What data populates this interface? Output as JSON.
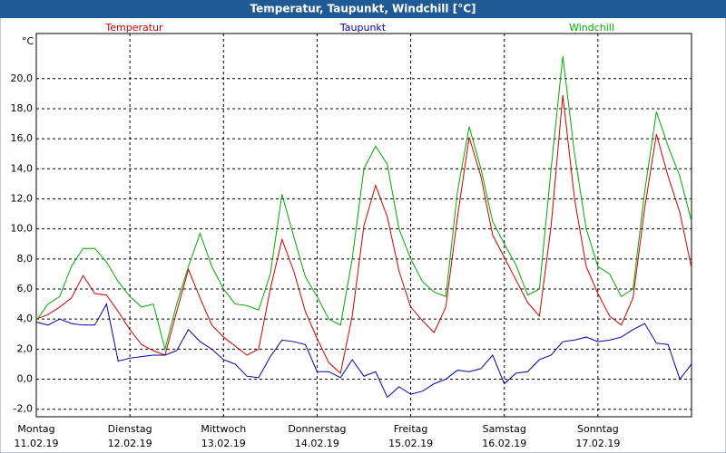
{
  "chart_data": {
    "type": "line",
    "title": "Temperatur, Taupunkt, Windchill [°C]",
    "y_unit": "°C",
    "xlim": [
      0,
      168
    ],
    "ylim": [
      -2.5,
      23
    ],
    "xticks": [
      {
        "value": 0,
        "label": "Montag"
      },
      {
        "value": 24,
        "label": "Dienstag"
      },
      {
        "value": 48,
        "label": "Mittwoch"
      },
      {
        "value": 72,
        "label": "Donnerstag"
      },
      {
        "value": 96,
        "label": "Freitag"
      },
      {
        "value": 120,
        "label": "Samstag"
      },
      {
        "value": 144,
        "label": "Sonntag"
      }
    ],
    "xtick_dates": [
      "11.02.19",
      "12.02.19",
      "13.02.19",
      "14.02.19",
      "15.02.19",
      "16.02.19",
      "17.02.19"
    ],
    "yticks": [
      {
        "value": -2,
        "label": "-2,0"
      },
      {
        "value": 0,
        "label": "0,0"
      },
      {
        "value": 2,
        "label": "2,0"
      },
      {
        "value": 4,
        "label": "4,0"
      },
      {
        "value": 6,
        "label": "6,0"
      },
      {
        "value": 8,
        "label": "8,0"
      },
      {
        "value": 10,
        "label": "10,0"
      },
      {
        "value": 12,
        "label": "12,0"
      },
      {
        "value": 14,
        "label": "14,0"
      },
      {
        "value": 16,
        "label": "16,0"
      },
      {
        "value": 18,
        "label": "18,0"
      },
      {
        "value": 20,
        "label": "20,0"
      }
    ],
    "grid": true,
    "x": [
      0,
      3,
      6,
      9,
      12,
      15,
      18,
      21,
      24,
      27,
      30,
      33,
      36,
      39,
      42,
      45,
      48,
      51,
      54,
      57,
      60,
      63,
      66,
      69,
      72,
      75,
      78,
      81,
      84,
      87,
      90,
      93,
      96,
      99,
      102,
      105,
      108,
      111,
      114,
      117,
      120,
      123,
      126,
      129,
      132,
      135,
      138,
      141,
      144,
      147,
      150,
      153,
      156,
      159,
      162,
      165,
      168
    ],
    "series": [
      {
        "name": "Temperatur",
        "color": "#cc0000",
        "values": [
          4.0,
          4.3,
          4.8,
          5.4,
          6.9,
          5.7,
          5.6,
          4.5,
          3.3,
          2.3,
          1.9,
          1.6,
          4.5,
          7.3,
          5.4,
          3.6,
          2.8,
          2.2,
          1.6,
          2.0,
          6.0,
          9.3,
          7.2,
          4.5,
          2.7,
          1.1,
          0.4,
          4.2,
          10.2,
          12.9,
          10.8,
          7.2,
          4.8,
          3.9,
          3.1,
          4.8,
          10.8,
          16.1,
          13.5,
          9.6,
          8.1,
          6.6,
          5.1,
          4.2,
          10.2,
          18.9,
          12.0,
          7.5,
          5.7,
          4.2,
          3.6,
          5.4,
          11.4,
          16.3,
          13.5,
          11.1,
          7.4
        ]
      },
      {
        "name": "Taupunkt",
        "color": "#0000aa",
        "values": [
          3.8,
          3.6,
          4.0,
          3.7,
          3.6,
          3.6,
          5.0,
          1.2,
          1.4,
          1.5,
          1.6,
          1.6,
          1.9,
          3.3,
          2.5,
          2.0,
          1.3,
          1.0,
          0.2,
          0.1,
          1.5,
          2.6,
          2.5,
          2.3,
          0.5,
          0.5,
          0.1,
          1.3,
          0.2,
          0.5,
          -1.2,
          -0.5,
          -1.0,
          -0.8,
          -0.3,
          0.0,
          0.6,
          0.5,
          0.7,
          1.6,
          -0.3,
          0.4,
          0.5,
          1.3,
          1.6,
          2.5,
          2.6,
          2.8,
          2.5,
          2.6,
          2.8,
          3.3,
          3.7,
          2.4,
          2.3,
          0.0,
          1.0
        ]
      },
      {
        "name": "Windchill",
        "color": "#00aa00",
        "values": [
          3.9,
          5.0,
          5.5,
          7.5,
          8.7,
          8.7,
          7.8,
          6.5,
          5.5,
          4.8,
          5.0,
          2.0,
          5.0,
          7.5,
          9.7,
          7.5,
          6.0,
          5.0,
          4.9,
          4.6,
          7.0,
          12.3,
          9.5,
          6.8,
          5.5,
          4.0,
          3.6,
          8.0,
          14.0,
          15.5,
          14.3,
          10.0,
          8.0,
          6.5,
          5.8,
          5.5,
          12.5,
          16.8,
          14.0,
          10.5,
          9.0,
          7.6,
          5.6,
          6.0,
          14.0,
          21.5,
          15.0,
          10.0,
          7.5,
          7.0,
          5.5,
          6.0,
          12.5,
          17.8,
          15.5,
          13.5,
          10.5
        ]
      }
    ]
  }
}
